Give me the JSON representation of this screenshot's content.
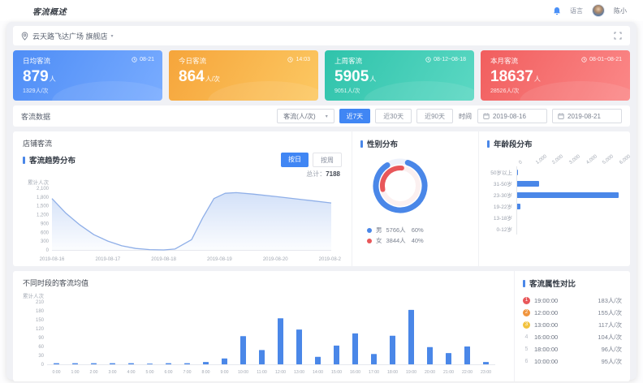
{
  "navbar": {
    "logo": "客流概述",
    "language": "语言",
    "username": "陈小"
  },
  "location_bar": {
    "store": "云天路飞达广场 旗舰店",
    "caret": "▾"
  },
  "stat_cards": [
    {
      "title": "日均客流",
      "time": "08-21",
      "value": "879",
      "unit": "人",
      "sub": "1329人/次",
      "color_from": "#4e8df6",
      "color_to": "#79acff"
    },
    {
      "title": "今日客流",
      "time": "14:03",
      "value": "864",
      "unit": "人/次",
      "sub": "",
      "color_from": "#f6a53b",
      "color_to": "#fcc862"
    },
    {
      "title": "上周客流",
      "time": "08-12~08-18",
      "value": "5905",
      "unit": "人",
      "sub": "9051人/次",
      "color_from": "#2fc3ab",
      "color_to": "#5bd8c3"
    },
    {
      "title": "本月客流",
      "time": "08-01~08-21",
      "value": "18637",
      "unit": "人",
      "sub": "28526人/次",
      "color_from": "#f15e5e",
      "color_to": "#fb8888"
    }
  ],
  "filter_bar": {
    "label": "客流数据",
    "dimension": "客流(人/次)",
    "caret": "▾",
    "ranges": [
      {
        "label": "近7天",
        "active": true
      },
      {
        "label": "近30天",
        "active": false
      },
      {
        "label": "近90天",
        "active": false
      }
    ],
    "time_label": "时间",
    "date_start": "2019-08-16",
    "date_end": "2019-08-21"
  },
  "charts_panel": {
    "caption": "店铺客流",
    "toggle_daily": "按日",
    "toggle_weekly": "按周"
  },
  "ranking": {
    "title": "客流属性对比",
    "medal_colors": [
      "#e8575a",
      "#f0953e",
      "#f2c33f"
    ],
    "items": [
      {
        "rank": "1",
        "time": "19:00:00",
        "value": "183人/次"
      },
      {
        "rank": "2",
        "time": "12:00:00",
        "value": "155人/次"
      },
      {
        "rank": "3",
        "time": "13:00:00",
        "value": "117人/次"
      },
      {
        "rank": "4",
        "time": "16:00:00",
        "value": "104人/次"
      },
      {
        "rank": "5",
        "time": "18:00:00",
        "value": "96人/次"
      },
      {
        "rank": "6",
        "time": "10:00:00",
        "value": "95人/次"
      }
    ]
  },
  "chart_data": [
    {
      "id": "visitor-trend",
      "type": "area",
      "title": "客流趋势分布",
      "ylabel": "累计人次",
      "total_label": "总计：",
      "total_value": "7188",
      "x_dates": [
        "2019-08-16",
        "2019-08-17",
        "2019-08-18",
        "2019-08-19",
        "2019-08-20",
        "2019-08-21"
      ],
      "points": [
        [
          0,
          1750
        ],
        [
          0.25,
          1250
        ],
        [
          0.5,
          850
        ],
        [
          0.75,
          520
        ],
        [
          1,
          300
        ],
        [
          1.25,
          140
        ],
        [
          1.5,
          50
        ],
        [
          1.75,
          10
        ],
        [
          2,
          0
        ],
        [
          2.2,
          30
        ],
        [
          2.5,
          350
        ],
        [
          2.7,
          1100
        ],
        [
          2.9,
          1750
        ],
        [
          3.1,
          1930
        ],
        [
          3.3,
          1950
        ],
        [
          3.6,
          1900
        ],
        [
          4,
          1820
        ],
        [
          4.5,
          1710
        ],
        [
          5,
          1600
        ]
      ],
      "ylim": [
        0,
        2100
      ],
      "ytick_step": 300,
      "line_color": "#8fafe8",
      "fill_color": "#9dbcf0"
    },
    {
      "id": "gender",
      "type": "donut",
      "title": "性别分布",
      "slices": [
        {
          "label": "男",
          "count": "5766人",
          "pct": "60%",
          "color": "#4a87e8"
        },
        {
          "label": "女",
          "count": "3844人",
          "pct": "40%",
          "color": "#e8575a"
        }
      ]
    },
    {
      "id": "age",
      "type": "bar-horizontal",
      "title": "年龄段分布",
      "categories": [
        "50岁以上",
        "31-50岁",
        "23-30岁",
        "19-22岁",
        "13-18岁",
        "0-12岁"
      ],
      "values": [
        50,
        1250,
        5800,
        200,
        0,
        0
      ],
      "xlim": [
        0,
        6000
      ],
      "xticks": [
        "0",
        "1,000",
        "2,000",
        "3,000",
        "4,000",
        "5,000",
        "6,000"
      ],
      "bar_color": "#4a87e8"
    },
    {
      "id": "hourly",
      "type": "bar",
      "title": "不同时段的客流均值",
      "ylabel": "累计人次",
      "categories": [
        "0:00",
        "1:00",
        "2:00",
        "3:00",
        "4:00",
        "5:00",
        "6:00",
        "7:00",
        "8:00",
        "9:00",
        "10:00",
        "11:00",
        "12:00",
        "13:00",
        "14:00",
        "15:00",
        "16:00",
        "17:00",
        "18:00",
        "19:00",
        "20:00",
        "21:00",
        "22:00",
        "23:00"
      ],
      "values": [
        2,
        3,
        1,
        2,
        1,
        0,
        1,
        2,
        8,
        20,
        95,
        48,
        155,
        117,
        25,
        63,
        104,
        35,
        96,
        183,
        58,
        38,
        60,
        8
      ],
      "ylim": [
        0,
        210
      ],
      "ytick_step": 30,
      "bar_color": "#4a87e8"
    }
  ]
}
